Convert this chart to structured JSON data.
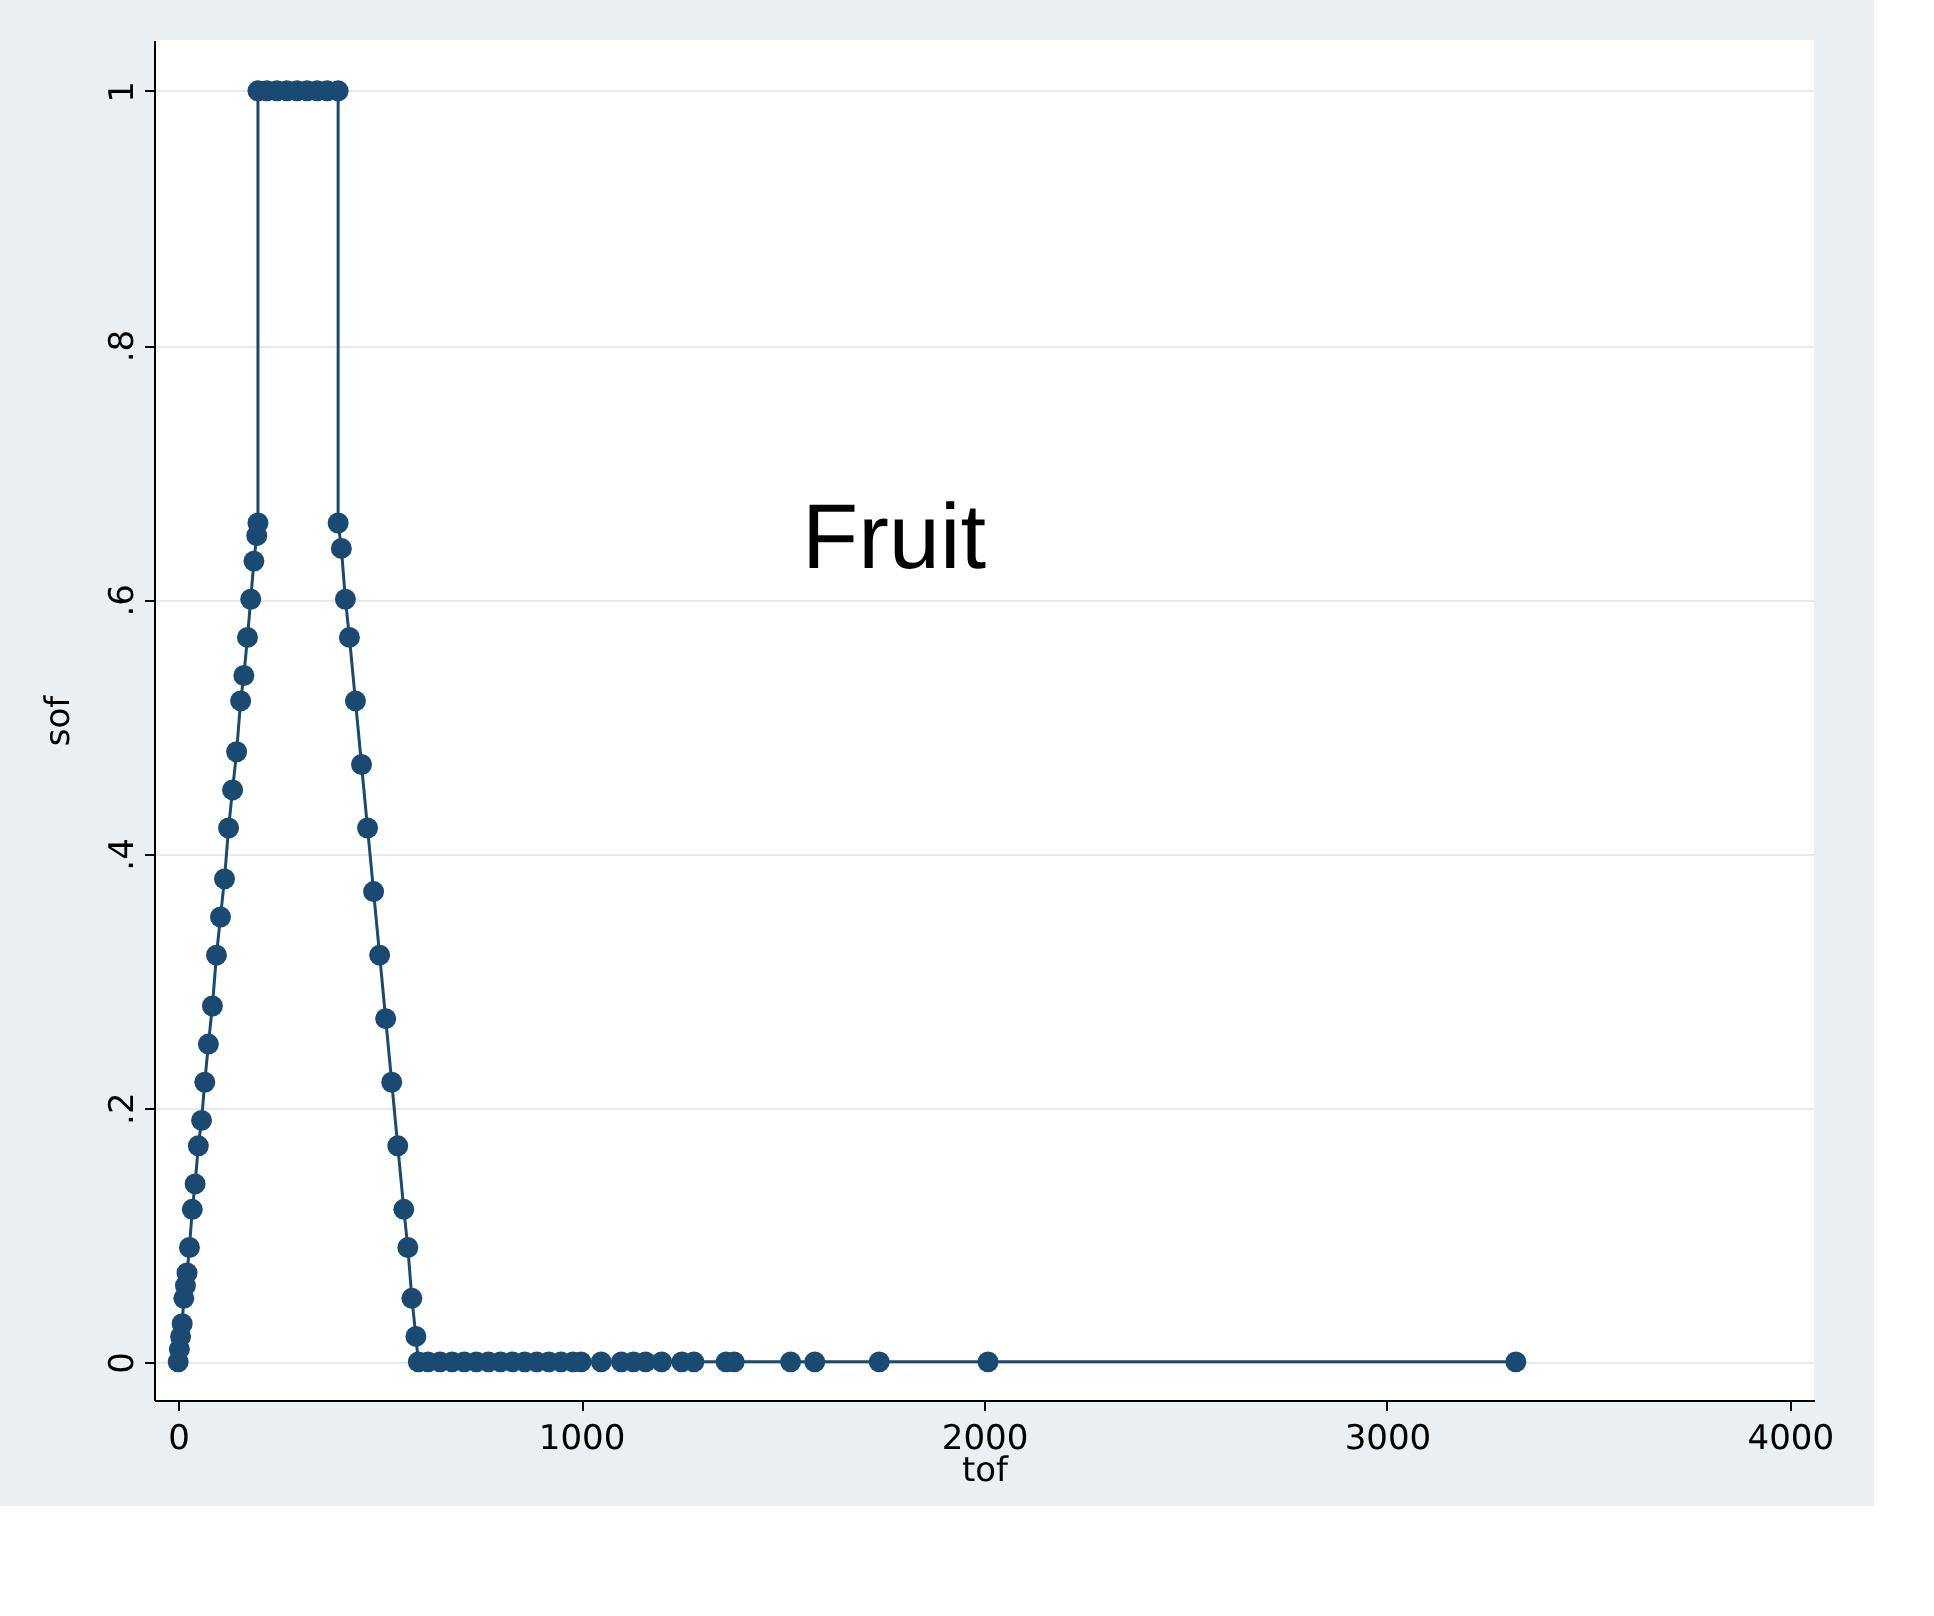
{
  "chart_data": {
    "type": "line",
    "xlabel": "tof",
    "ylabel": "sof",
    "annotations": [
      "Fruit"
    ],
    "x": [
      0,
      3,
      6,
      10,
      14,
      18,
      22,
      28,
      35,
      42,
      50,
      58,
      66,
      75,
      85,
      95,
      105,
      115,
      125,
      135,
      145,
      155,
      163,
      172,
      180,
      188,
      195,
      198,
      198,
      220,
      245,
      270,
      295,
      320,
      345,
      370,
      397,
      397,
      405,
      415,
      425,
      440,
      455,
      470,
      485,
      500,
      515,
      530,
      545,
      560,
      570,
      580,
      590,
      596,
      620,
      650,
      680,
      710,
      740,
      770,
      800,
      830,
      860,
      890,
      920,
      950,
      980,
      1000,
      1050,
      1100,
      1130,
      1160,
      1200,
      1250,
      1280,
      1360,
      1380,
      1520,
      1580,
      1740,
      2010,
      3320
    ],
    "series": [
      {
        "color": "#1a4a72",
        "values": [
          0,
          0.01,
          0.02,
          0.03,
          0.05,
          0.06,
          0.07,
          0.09,
          0.12,
          0.14,
          0.17,
          0.19,
          0.22,
          0.25,
          0.28,
          0.32,
          0.35,
          0.38,
          0.42,
          0.45,
          0.48,
          0.52,
          0.54,
          0.57,
          0.6,
          0.63,
          0.65,
          0.66,
          1,
          1,
          1,
          1,
          1,
          1,
          1,
          1,
          1,
          0.66,
          0.64,
          0.6,
          0.57,
          0.52,
          0.47,
          0.42,
          0.37,
          0.32,
          0.27,
          0.22,
          0.17,
          0.12,
          0.09,
          0.05,
          0.02,
          0,
          0,
          0,
          0,
          0,
          0,
          0,
          0,
          0,
          0,
          0,
          0,
          0,
          0,
          0,
          0,
          0,
          0,
          0,
          0,
          0,
          0,
          0,
          0,
          0,
          0,
          0,
          0,
          0
        ]
      }
    ],
    "marker": "circle",
    "line_style": "solid",
    "grid": "y",
    "xlim": [
      -60,
      4060
    ],
    "xticks": [
      0,
      1000,
      2000,
      3000,
      4000
    ],
    "ylim": [
      -0.03,
      1.04
    ],
    "yticks": [
      0,
      {
        "value": 0.2,
        "label": ".2"
      },
      {
        "value": 0.4,
        "label": ".4"
      },
      {
        "value": 0.6,
        "label": ".6"
      },
      {
        "value": 0.8,
        "label": ".8"
      },
      1
    ]
  }
}
